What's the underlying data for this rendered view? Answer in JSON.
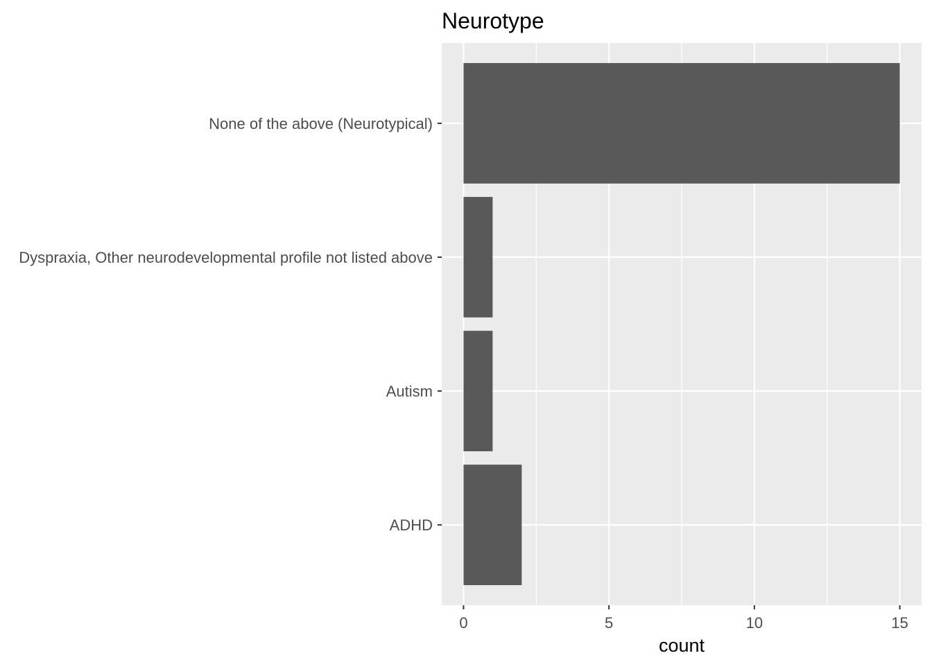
{
  "chart_data": {
    "type": "bar",
    "orientation": "horizontal",
    "title": "Neurotype",
    "xlabel": "count",
    "ylabel": "",
    "categories": [
      "None of the above (Neurotypical)",
      "Dyspraxia, Other neurodevelopmental profile not listed above",
      "Autism",
      "ADHD"
    ],
    "values": [
      15,
      1,
      1,
      2
    ],
    "xlim": [
      -0.75,
      15.75
    ],
    "x_ticks": [
      0,
      5,
      10,
      15
    ],
    "grid": true,
    "legend": "none",
    "colors": {
      "bar": "#595959",
      "panel": "#ebebeb",
      "grid": "#ffffff",
      "tick_text": "#4d4d4d",
      "title_text": "#000000"
    }
  }
}
